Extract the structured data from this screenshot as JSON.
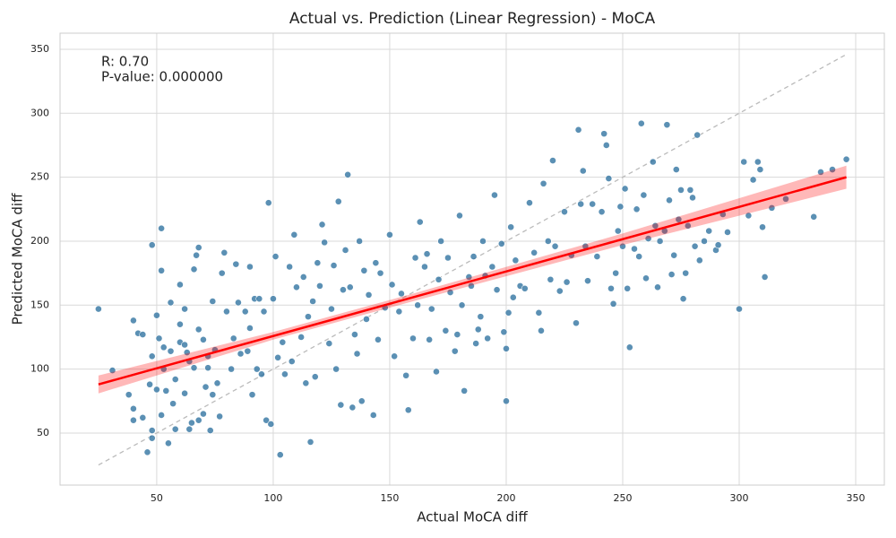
{
  "chart_data": {
    "type": "scatter",
    "title": "Actual vs. Prediction (Linear Regression) - MoCA",
    "xlabel": "Actual MoCA diff",
    "ylabel": "Predicted MoCA diff",
    "annotations": [
      "R: 0.70",
      "P-value: 0.000000"
    ],
    "xlim": [
      8.5,
      362.3
    ],
    "ylim": [
      9.3,
      362.6
    ],
    "xticks": [
      50,
      100,
      150,
      200,
      250,
      300,
      350
    ],
    "yticks": [
      50,
      100,
      150,
      200,
      250,
      300,
      350
    ],
    "grid": true,
    "color": "#3274a1",
    "line_color": "#ff0000",
    "reference_color": "#bbbbbb",
    "regression": {
      "x": [
        25,
        346
      ],
      "y": [
        88,
        250
      ]
    },
    "confidence_band": {
      "x": [
        25,
        100,
        160,
        250,
        346
      ],
      "lower": [
        81,
        123,
        153,
        197,
        241
      ],
      "upper": [
        95,
        129,
        159,
        206,
        259
      ]
    },
    "reference_line": {
      "x": [
        25,
        346
      ],
      "y": [
        25,
        346
      ]
    },
    "points": [
      [
        25,
        147
      ],
      [
        31,
        99
      ],
      [
        40,
        138
      ],
      [
        42,
        128
      ],
      [
        44,
        127
      ],
      [
        38,
        80
      ],
      [
        40,
        60
      ],
      [
        40,
        69
      ],
      [
        44,
        62
      ],
      [
        46,
        35
      ],
      [
        48,
        46
      ],
      [
        48,
        52
      ],
      [
        48,
        197
      ],
      [
        50,
        142
      ],
      [
        51,
        124
      ],
      [
        52,
        210
      ],
      [
        52,
        177
      ],
      [
        53,
        117
      ],
      [
        53,
        100
      ],
      [
        54,
        83
      ],
      [
        55,
        42
      ],
      [
        56,
        152
      ],
      [
        57,
        73
      ],
      [
        58,
        53
      ],
      [
        60,
        166
      ],
      [
        60,
        135
      ],
      [
        62,
        147
      ],
      [
        60,
        121
      ],
      [
        62,
        119
      ],
      [
        63,
        113
      ],
      [
        64,
        53
      ],
      [
        65,
        58
      ],
      [
        66,
        178
      ],
      [
        67,
        189
      ],
      [
        68,
        195
      ],
      [
        68,
        131
      ],
      [
        70,
        123
      ],
      [
        71,
        86
      ],
      [
        72,
        101
      ],
      [
        73,
        52
      ],
      [
        74,
        153
      ],
      [
        75,
        115
      ],
      [
        77,
        63
      ],
      [
        78,
        175
      ],
      [
        79,
        191
      ],
      [
        50,
        84
      ],
      [
        52,
        64
      ],
      [
        48,
        110
      ],
      [
        47,
        88
      ],
      [
        58,
        92
      ],
      [
        66,
        101
      ],
      [
        70,
        65
      ],
      [
        72,
        110
      ],
      [
        76,
        89
      ],
      [
        62,
        81
      ],
      [
        64,
        106
      ],
      [
        56,
        114
      ],
      [
        68,
        60
      ],
      [
        74,
        80
      ],
      [
        80,
        145
      ],
      [
        82,
        100
      ],
      [
        83,
        124
      ],
      [
        84,
        182
      ],
      [
        85,
        152
      ],
      [
        86,
        112
      ],
      [
        88,
        145
      ],
      [
        89,
        114
      ],
      [
        90,
        180
      ],
      [
        90,
        132
      ],
      [
        91,
        80
      ],
      [
        92,
        155
      ],
      [
        93,
        100
      ],
      [
        94,
        155
      ],
      [
        95,
        96
      ],
      [
        96,
        145
      ],
      [
        97,
        60
      ],
      [
        98,
        230
      ],
      [
        99,
        57
      ],
      [
        100,
        155
      ],
      [
        101,
        188
      ],
      [
        102,
        109
      ],
      [
        103,
        33
      ],
      [
        104,
        121
      ],
      [
        105,
        96
      ],
      [
        107,
        180
      ],
      [
        108,
        106
      ],
      [
        109,
        205
      ],
      [
        110,
        164
      ],
      [
        112,
        125
      ],
      [
        113,
        172
      ],
      [
        114,
        89
      ],
      [
        115,
        141
      ],
      [
        116,
        43
      ],
      [
        117,
        153
      ],
      [
        118,
        94
      ],
      [
        119,
        183
      ],
      [
        120,
        165
      ],
      [
        121,
        213
      ],
      [
        122,
        199
      ],
      [
        124,
        120
      ],
      [
        125,
        147
      ],
      [
        126,
        181
      ],
      [
        127,
        100
      ],
      [
        128,
        231
      ],
      [
        129,
        72
      ],
      [
        130,
        162
      ],
      [
        131,
        193
      ],
      [
        132,
        252
      ],
      [
        133,
        164
      ],
      [
        134,
        70
      ],
      [
        135,
        127
      ],
      [
        136,
        112
      ],
      [
        137,
        200
      ],
      [
        138,
        75
      ],
      [
        139,
        177
      ],
      [
        140,
        139
      ],
      [
        141,
        158
      ],
      [
        143,
        64
      ],
      [
        144,
        183
      ],
      [
        145,
        123
      ],
      [
        146,
        175
      ],
      [
        148,
        148
      ],
      [
        150,
        205
      ],
      [
        151,
        166
      ],
      [
        152,
        110
      ],
      [
        154,
        145
      ],
      [
        155,
        159
      ],
      [
        157,
        95
      ],
      [
        158,
        68
      ],
      [
        160,
        124
      ],
      [
        161,
        187
      ],
      [
        162,
        150
      ],
      [
        163,
        215
      ],
      [
        165,
        180
      ],
      [
        166,
        190
      ],
      [
        167,
        123
      ],
      [
        168,
        147
      ],
      [
        170,
        98
      ],
      [
        171,
        170
      ],
      [
        172,
        200
      ],
      [
        174,
        130
      ],
      [
        175,
        187
      ],
      [
        176,
        160
      ],
      [
        178,
        114
      ],
      [
        179,
        127
      ],
      [
        180,
        220
      ],
      [
        181,
        150
      ],
      [
        182,
        83
      ],
      [
        184,
        172
      ],
      [
        185,
        165
      ],
      [
        186,
        188
      ],
      [
        187,
        120
      ],
      [
        188,
        131
      ],
      [
        189,
        141
      ],
      [
        190,
        200
      ],
      [
        191,
        173
      ],
      [
        192,
        124
      ],
      [
        194,
        180
      ],
      [
        195,
        236
      ],
      [
        196,
        162
      ],
      [
        198,
        198
      ],
      [
        199,
        129
      ],
      [
        200,
        75
      ],
      [
        200,
        116
      ],
      [
        201,
        144
      ],
      [
        202,
        211
      ],
      [
        203,
        156
      ],
      [
        204,
        185
      ],
      [
        206,
        165
      ],
      [
        208,
        163
      ],
      [
        210,
        230
      ],
      [
        212,
        191
      ],
      [
        214,
        144
      ],
      [
        215,
        130
      ],
      [
        216,
        245
      ],
      [
        218,
        200
      ],
      [
        219,
        170
      ],
      [
        220,
        263
      ],
      [
        221,
        196
      ],
      [
        223,
        161
      ],
      [
        225,
        223
      ],
      [
        226,
        168
      ],
      [
        228,
        189
      ],
      [
        230,
        136
      ],
      [
        231,
        287
      ],
      [
        232,
        229
      ],
      [
        233,
        255
      ],
      [
        234,
        196
      ],
      [
        235,
        169
      ],
      [
        237,
        229
      ],
      [
        239,
        188
      ],
      [
        241,
        223
      ],
      [
        242,
        284
      ],
      [
        243,
        275
      ],
      [
        244,
        249
      ],
      [
        245,
        163
      ],
      [
        246,
        151
      ],
      [
        247,
        175
      ],
      [
        248,
        208
      ],
      [
        249,
        227
      ],
      [
        250,
        196
      ],
      [
        251,
        241
      ],
      [
        252,
        163
      ],
      [
        253,
        117
      ],
      [
        255,
        194
      ],
      [
        256,
        225
      ],
      [
        257,
        188
      ],
      [
        258,
        292
      ],
      [
        259,
        236
      ],
      [
        260,
        171
      ],
      [
        261,
        202
      ],
      [
        263,
        262
      ],
      [
        264,
        212
      ],
      [
        265,
        164
      ],
      [
        266,
        200
      ],
      [
        268,
        208
      ],
      [
        269,
        291
      ],
      [
        270,
        232
      ],
      [
        271,
        174
      ],
      [
        272,
        189
      ],
      [
        273,
        256
      ],
      [
        274,
        217
      ],
      [
        275,
        240
      ],
      [
        276,
        155
      ],
      [
        277,
        175
      ],
      [
        278,
        212
      ],
      [
        279,
        240
      ],
      [
        280,
        234
      ],
      [
        281,
        196
      ],
      [
        282,
        283
      ],
      [
        283,
        185
      ],
      [
        285,
        200
      ],
      [
        287,
        208
      ],
      [
        290,
        193
      ],
      [
        291,
        197
      ],
      [
        293,
        221
      ],
      [
        295,
        207
      ],
      [
        300,
        147
      ],
      [
        302,
        262
      ],
      [
        304,
        220
      ],
      [
        306,
        248
      ],
      [
        308,
        262
      ],
      [
        309,
        256
      ],
      [
        310,
        211
      ],
      [
        311,
        172
      ],
      [
        314,
        226
      ],
      [
        320,
        233
      ],
      [
        332,
        219
      ],
      [
        335,
        254
      ],
      [
        340,
        256
      ],
      [
        346,
        264
      ]
    ]
  }
}
